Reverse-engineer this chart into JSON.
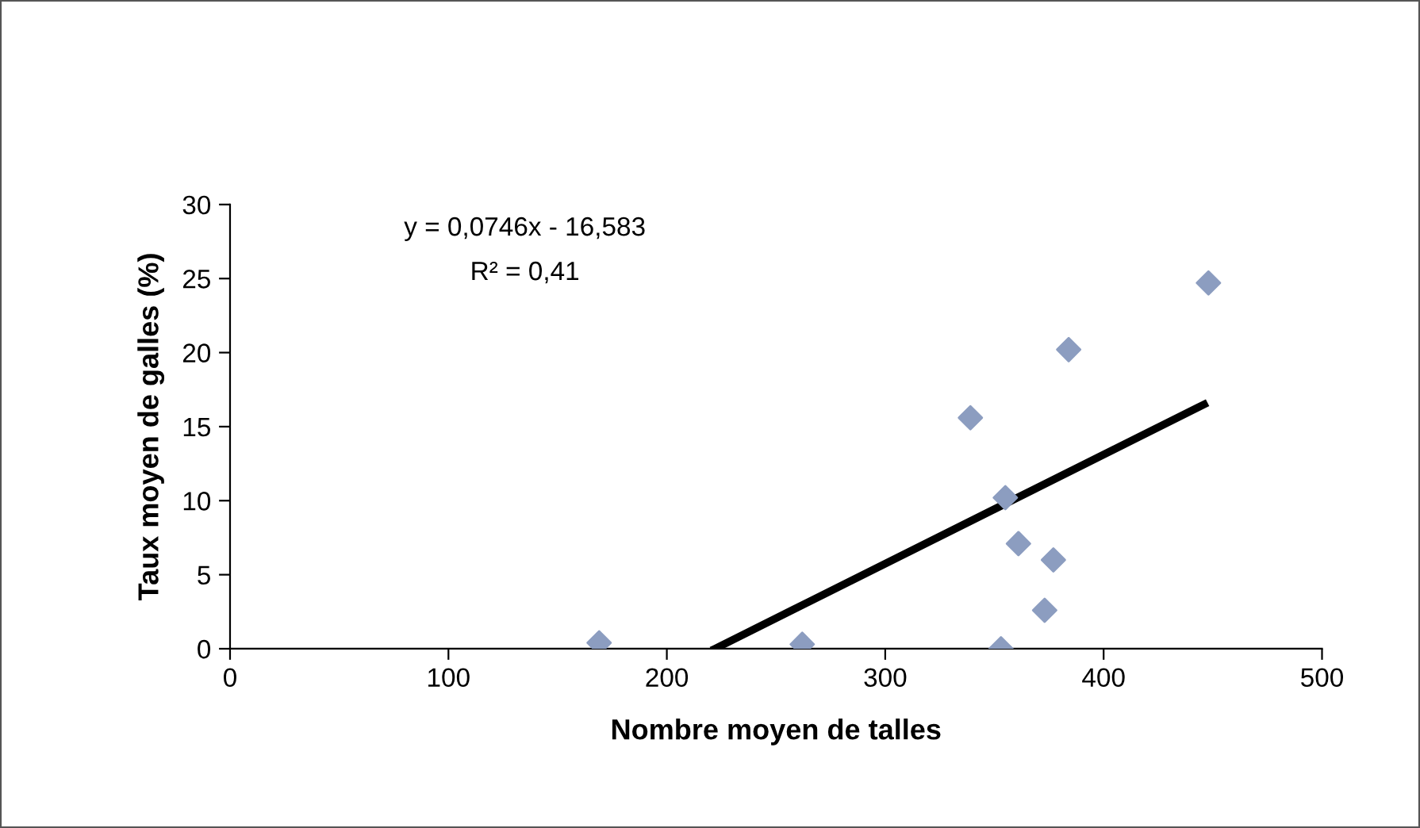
{
  "chart_data": {
    "type": "scatter",
    "xlabel": "Nombre moyen de talles",
    "ylabel": "Taux moyen de galles (%)",
    "annotations": [
      "y = 0,0746x - 16,583",
      "R² = 0,41"
    ],
    "xlim": [
      0,
      500
    ],
    "xticks": [
      0,
      100,
      200,
      300,
      400,
      500
    ],
    "ylim": [
      0,
      30
    ],
    "yticks": [
      0,
      5,
      10,
      15,
      20,
      25,
      30
    ],
    "grid": false,
    "legend": false,
    "marker": "diamond",
    "series": [
      {
        "color": "#8c9dc0",
        "x": [
          169,
          262,
          339,
          355,
          353,
          361,
          373,
          377,
          384,
          448
        ],
        "values": [
          0.4,
          0.3,
          15.6,
          10.2,
          0,
          7.1,
          2.6,
          6.0,
          20.2,
          24.7
        ]
      },
      {
        "type": "line",
        "color": "#000000",
        "marker": "none",
        "x": [
          222,
          446
        ],
        "values": [
          0,
          16.5
        ]
      }
    ]
  }
}
